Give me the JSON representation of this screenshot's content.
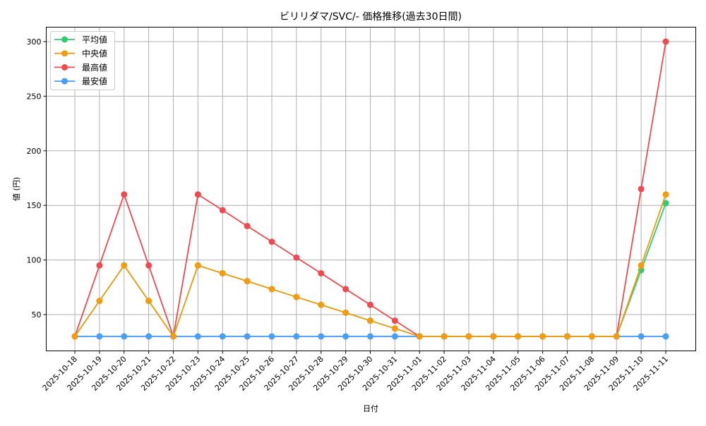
{
  "chart_data": {
    "type": "line",
    "title": "ビリリダマ/SVC/- 価格推移(過去30日間)",
    "xlabel": "日付",
    "ylabel": "値 (円)",
    "ylim": [
      17,
      313
    ],
    "yticks": [
      50,
      100,
      150,
      200,
      250,
      300
    ],
    "grid": true,
    "legend_position": "upper left",
    "x": [
      "2025-10-18",
      "2025-10-19",
      "2025-10-20",
      "2025-10-21",
      "2025-10-22",
      "2025-10-23",
      "2025-10-24",
      "2025-10-25",
      "2025-10-26",
      "2025-10-27",
      "2025-10-28",
      "2025-10-29",
      "2025-10-30",
      "2025-10-31",
      "2025-11-01",
      "2025-11-02",
      "2025-11-03",
      "2025-11-04",
      "2025-11-05",
      "2025-11-06",
      "2025-11-07",
      "2025-11-08",
      "2025-11-09",
      "2025-11-10",
      "2025-11-11"
    ],
    "series": [
      {
        "name": "平均値",
        "color": "#2ecc71",
        "values": [
          30,
          62.5,
          95,
          62.5,
          30,
          95,
          87.8,
          80.6,
          73.3,
          66.1,
          58.9,
          51.7,
          44.4,
          37.2,
          30,
          30,
          30,
          30,
          30,
          30,
          30,
          30,
          30,
          90.7,
          152
        ]
      },
      {
        "name": "中央値",
        "color": "#f39c12",
        "values": [
          30,
          62.5,
          95,
          62.5,
          30,
          95,
          87.8,
          80.6,
          73.3,
          66.1,
          58.9,
          51.7,
          44.4,
          37.2,
          30,
          30,
          30,
          30,
          30,
          30,
          30,
          30,
          30,
          95,
          160
        ]
      },
      {
        "name": "最高値",
        "color": "#ef4a4f",
        "values": [
          30,
          95,
          160,
          95,
          30,
          160,
          145.6,
          131.1,
          116.7,
          102.2,
          87.8,
          73.3,
          58.9,
          44.4,
          30,
          30,
          30,
          30,
          30,
          30,
          30,
          30,
          30,
          165,
          300
        ]
      },
      {
        "name": "最安値",
        "color": "#4a9df8",
        "values": [
          30,
          30,
          30,
          30,
          30,
          30,
          30,
          30,
          30,
          30,
          30,
          30,
          30,
          30,
          30,
          30,
          30,
          30,
          30,
          30,
          30,
          30,
          30,
          30,
          30
        ]
      }
    ]
  }
}
